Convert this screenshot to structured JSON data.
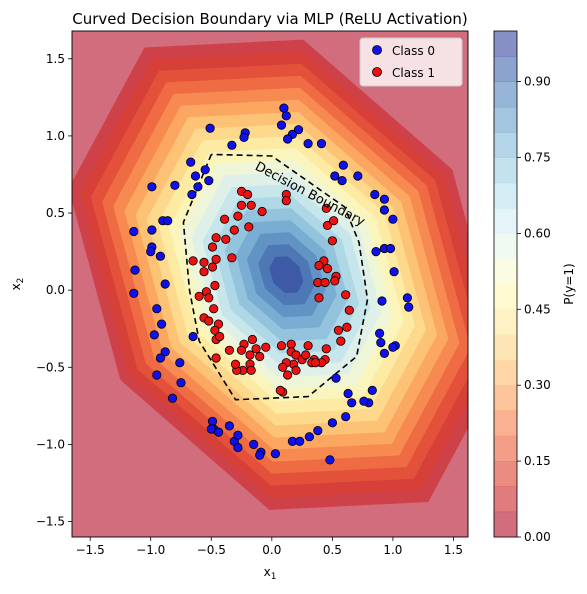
{
  "chart_data": {
    "type": "contour+scatter",
    "title": "Curved Decision Boundary via MLP (ReLU Activation)",
    "xlabel": "x",
    "xlabel_sub": "1",
    "ylabel": "x",
    "ylabel_sub": "2",
    "xlim": [
      -1.65,
      1.62
    ],
    "ylim": [
      -1.6,
      1.68
    ],
    "xticks": [
      -1.5,
      -1.0,
      -0.5,
      0.0,
      0.5,
      1.0,
      1.5
    ],
    "xtick_labels": [
      "−1.5",
      "−1.0",
      "−0.5",
      "0.0",
      "0.5",
      "1.0",
      "1.5"
    ],
    "yticks": [
      -1.5,
      -1.0,
      -0.5,
      0.0,
      0.5,
      1.0,
      1.5
    ],
    "ytick_labels": [
      "−1.5",
      "−1.0",
      "−0.5",
      "0.0",
      "0.5",
      "1.0",
      "1.5"
    ],
    "colorbar": {
      "label": "P(y=1)",
      "range": [
        0.0,
        1.0
      ],
      "ticks": [
        0.0,
        0.15,
        0.3,
        0.45,
        0.6,
        0.75,
        0.9
      ],
      "tick_labels": [
        "0.00",
        "0.15",
        "0.30",
        "0.45",
        "0.60",
        "0.75",
        "0.90"
      ],
      "levels": 20
    },
    "boundary_label": "Decision Boundary",
    "boundary_polygon": [
      [
        -0.5,
        0.88
      ],
      [
        -0.73,
        0.44
      ],
      [
        -0.68,
        0.0
      ],
      [
        -0.6,
        -0.33
      ],
      [
        -0.3,
        -0.71
      ],
      [
        0.3,
        -0.69
      ],
      [
        0.7,
        -0.43
      ],
      [
        0.79,
        -0.06
      ],
      [
        0.72,
        0.31
      ],
      [
        0.6,
        0.54
      ],
      [
        0.0,
        0.87
      ],
      [
        -0.5,
        0.88
      ]
    ],
    "legend": {
      "placement": "top-right",
      "entries": [
        {
          "label": "Class 0",
          "color": "#0000ff"
        },
        {
          "label": "Class 1",
          "color": "#ff0000"
        }
      ]
    },
    "series": [
      {
        "name": "Class 0",
        "color": "#1010ee",
        "points": [
          [
            0.1,
            1.18
          ],
          [
            0.12,
            1.13
          ],
          [
            0.08,
            1.07
          ],
          [
            0.22,
            1.04
          ],
          [
            0.17,
            1.01
          ],
          [
            0.13,
            0.98
          ],
          [
            0.3,
            0.95
          ],
          [
            0.41,
            0.95
          ],
          [
            -0.51,
            1.05
          ],
          [
            -0.22,
            1.02
          ],
          [
            -0.23,
            0.99
          ],
          [
            -0.33,
            0.94
          ],
          [
            0.59,
            0.81
          ],
          [
            0.52,
            0.74
          ],
          [
            0.58,
            0.71
          ],
          [
            0.71,
            0.74
          ],
          [
            -0.67,
            0.83
          ],
          [
            -0.63,
            0.74
          ],
          [
            -0.55,
            0.78
          ],
          [
            -0.52,
            0.71
          ],
          [
            -0.99,
            0.67
          ],
          [
            -0.8,
            0.68
          ],
          [
            -0.61,
            0.67
          ],
          [
            -0.66,
            0.62
          ],
          [
            0.85,
            0.62
          ],
          [
            0.93,
            0.59
          ],
          [
            0.93,
            0.52
          ],
          [
            1.0,
            0.46
          ],
          [
            -0.9,
            0.45
          ],
          [
            -0.86,
            0.45
          ],
          [
            -1.14,
            0.38
          ],
          [
            -0.99,
            0.39
          ],
          [
            -0.99,
            0.28
          ],
          [
            -1.0,
            0.25
          ],
          [
            -0.92,
            0.22
          ],
          [
            -0.88,
            0.04
          ],
          [
            -1.13,
            0.13
          ],
          [
            -1.14,
            -0.02
          ],
          [
            0.93,
            0.27
          ],
          [
            0.98,
            0.27
          ],
          [
            0.86,
            0.25
          ],
          [
            1.01,
            0.12
          ],
          [
            1.12,
            -0.05
          ],
          [
            1.13,
            -0.11
          ],
          [
            0.91,
            -0.07
          ],
          [
            -0.95,
            -0.12
          ],
          [
            -0.97,
            -0.29
          ],
          [
            -0.91,
            -0.22
          ],
          [
            -0.65,
            -0.3
          ],
          [
            -0.88,
            -0.4
          ],
          [
            -0.92,
            -0.44
          ],
          [
            -0.76,
            -0.47
          ],
          [
            0.89,
            -0.28
          ],
          [
            0.9,
            -0.34
          ],
          [
            1.02,
            -0.36
          ],
          [
            1.0,
            -0.37
          ],
          [
            0.93,
            -0.41
          ],
          [
            -0.82,
            -0.7
          ],
          [
            -0.75,
            -0.6
          ],
          [
            -0.95,
            -0.55
          ],
          [
            0.66,
            -0.73
          ],
          [
            0.63,
            -0.67
          ],
          [
            0.61,
            -0.82
          ],
          [
            0.8,
            -0.73
          ],
          [
            0.83,
            -0.65
          ],
          [
            0.53,
            -0.57
          ],
          [
            0.76,
            -0.72
          ],
          [
            -0.49,
            -0.85
          ],
          [
            -0.48,
            -0.9
          ],
          [
            -0.5,
            -0.9
          ],
          [
            -0.35,
            -0.88
          ],
          [
            -0.31,
            -0.98
          ],
          [
            -0.44,
            -0.92
          ],
          [
            -0.28,
            -0.94
          ],
          [
            -0.28,
            -1.02
          ],
          [
            -0.15,
            -1.0
          ],
          [
            -0.09,
            -1.05
          ],
          [
            -0.1,
            -1.07
          ],
          [
            0.03,
            -1.06
          ],
          [
            0.17,
            -0.98
          ],
          [
            0.23,
            -0.98
          ],
          [
            0.38,
            -0.91
          ],
          [
            0.31,
            -0.95
          ],
          [
            0.5,
            -0.86
          ],
          [
            0.48,
            -1.1
          ]
        ]
      },
      {
        "name": "Class 1",
        "color": "#ee1111",
        "points": [
          [
            0.12,
            0.62
          ],
          [
            0.12,
            0.58
          ],
          [
            0.45,
            0.53
          ],
          [
            0.46,
            0.42
          ],
          [
            0.51,
            0.45
          ],
          [
            0.5,
            0.32
          ],
          [
            -0.25,
            0.64
          ],
          [
            -0.2,
            0.62
          ],
          [
            -0.17,
            0.55
          ],
          [
            -0.08,
            0.51
          ],
          [
            -0.25,
            0.55
          ],
          [
            -0.28,
            0.48
          ],
          [
            -0.39,
            0.46
          ],
          [
            -0.31,
            0.39
          ],
          [
            -0.46,
            0.34
          ],
          [
            -0.38,
            0.33
          ],
          [
            -0.49,
            0.28
          ],
          [
            -0.19,
            0.41
          ],
          [
            -0.33,
            0.21
          ],
          [
            -0.46,
            0.2
          ],
          [
            -0.56,
            0.18
          ],
          [
            -0.65,
            0.19
          ],
          [
            -0.49,
            0.15
          ],
          [
            -0.56,
            0.12
          ],
          [
            -0.47,
            0.03
          ],
          [
            -0.54,
            -0.01
          ],
          [
            -0.52,
            -0.05
          ],
          [
            -0.6,
            -0.04
          ],
          [
            -0.48,
            -0.12
          ],
          [
            -0.56,
            -0.18
          ],
          [
            -0.52,
            -0.2
          ],
          [
            -0.44,
            -0.22
          ],
          [
            -0.47,
            -0.26
          ],
          [
            -0.46,
            -0.32
          ],
          [
            -0.43,
            -0.3
          ],
          [
            -0.46,
            -0.44
          ],
          [
            0.43,
            0.19
          ],
          [
            0.46,
            0.14
          ],
          [
            0.39,
            0.16
          ],
          [
            0.53,
            0.09
          ],
          [
            0.52,
            0.06
          ],
          [
            0.38,
            0.05
          ],
          [
            0.44,
            0.05
          ],
          [
            0.39,
            -0.05
          ],
          [
            0.61,
            -0.03
          ],
          [
            0.64,
            -0.13
          ],
          [
            0.62,
            -0.24
          ],
          [
            0.55,
            -0.26
          ],
          [
            0.57,
            -0.33
          ],
          [
            0.45,
            -0.38
          ],
          [
            0.44,
            -0.45
          ],
          [
            0.3,
            -0.36
          ],
          [
            0.35,
            -0.45
          ],
          [
            0.33,
            -0.47
          ],
          [
            0.41,
            -0.47
          ],
          [
            0.36,
            -0.47
          ],
          [
            0.16,
            -0.35
          ],
          [
            0.16,
            -0.4
          ],
          [
            0.2,
            -0.42
          ],
          [
            0.18,
            -0.48
          ],
          [
            0.25,
            -0.45
          ],
          [
            0.28,
            -0.42
          ],
          [
            0.12,
            -0.47
          ],
          [
            0.09,
            -0.5
          ],
          [
            0.2,
            -0.52
          ],
          [
            0.13,
            -0.55
          ],
          [
            -0.16,
            -0.32
          ],
          [
            -0.13,
            -0.38
          ],
          [
            -0.18,
            -0.42
          ],
          [
            -0.23,
            -0.35
          ],
          [
            -0.25,
            -0.39
          ],
          [
            -0.18,
            -0.48
          ],
          [
            -0.1,
            -0.43
          ],
          [
            -0.17,
            -0.52
          ],
          [
            -0.24,
            -0.52
          ],
          [
            -0.29,
            -0.52
          ],
          [
            -0.35,
            -0.39
          ],
          [
            -0.3,
            -0.48
          ],
          [
            -0.05,
            -0.37
          ],
          [
            0.08,
            -0.36
          ],
          [
            0.09,
            -0.66
          ],
          [
            0.07,
            -0.65
          ]
        ]
      }
    ]
  }
}
